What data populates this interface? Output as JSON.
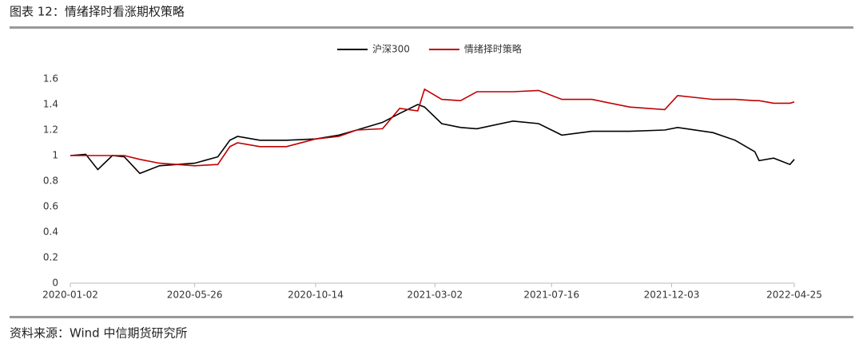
{
  "chart_data": {
    "type": "line",
    "title": "图表 12：情绪择时看涨期权策略",
    "source": "资料来源：Wind 中信期货研究所",
    "x": [
      "2020-01-02",
      "2020-01-20",
      "2020-02-03",
      "2020-02-20",
      "2020-03-05",
      "2020-03-23",
      "2020-04-15",
      "2020-05-26",
      "2020-06-22",
      "2020-07-06",
      "2020-07-15",
      "2020-08-10",
      "2020-09-10",
      "2020-10-14",
      "2020-11-10",
      "2020-12-01",
      "2020-12-31",
      "2021-01-20",
      "2021-02-10",
      "2021-02-18",
      "2021-03-10",
      "2021-04-01",
      "2021-04-20",
      "2021-06-01",
      "2021-07-01",
      "2021-07-28",
      "2021-09-01",
      "2021-10-15",
      "2021-11-25",
      "2021-12-10",
      "2022-01-20",
      "2022-02-15",
      "2022-03-10",
      "2022-03-15",
      "2022-04-01",
      "2022-04-20",
      "2022-04-25"
    ],
    "series": [
      {
        "name": "沪深300",
        "color": "#000000",
        "values": [
          1.0,
          1.01,
          0.89,
          1.0,
          0.99,
          0.86,
          0.92,
          0.94,
          0.99,
          1.12,
          1.15,
          1.12,
          1.12,
          1.13,
          1.16,
          1.2,
          1.26,
          1.33,
          1.4,
          1.38,
          1.25,
          1.22,
          1.21,
          1.27,
          1.25,
          1.16,
          1.19,
          1.19,
          1.2,
          1.22,
          1.18,
          1.12,
          1.03,
          0.96,
          0.98,
          0.93,
          0.97
        ]
      },
      {
        "name": "情绪择时策略",
        "color": "#c00000",
        "values": [
          1.0,
          1.0,
          1.0,
          1.0,
          1.0,
          0.97,
          0.94,
          0.92,
          0.93,
          1.07,
          1.1,
          1.07,
          1.07,
          1.13,
          1.15,
          1.2,
          1.21,
          1.37,
          1.35,
          1.52,
          1.44,
          1.43,
          1.5,
          1.5,
          1.51,
          1.44,
          1.44,
          1.38,
          1.36,
          1.47,
          1.44,
          1.44,
          1.43,
          1.43,
          1.41,
          1.41,
          1.42
        ]
      }
    ],
    "xlim": [
      "2020-01-02",
      "2022-04-25"
    ],
    "xticks": [
      "2020-01-02",
      "2020-05-26",
      "2020-10-14",
      "2021-03-02",
      "2021-07-16",
      "2021-12-03",
      "2022-04-25"
    ],
    "ylim": [
      0,
      1.6
    ],
    "yticks": [
      0,
      0.2,
      0.4,
      0.6,
      0.8,
      1,
      1.2,
      1.4,
      1.6
    ],
    "legend": "top"
  }
}
